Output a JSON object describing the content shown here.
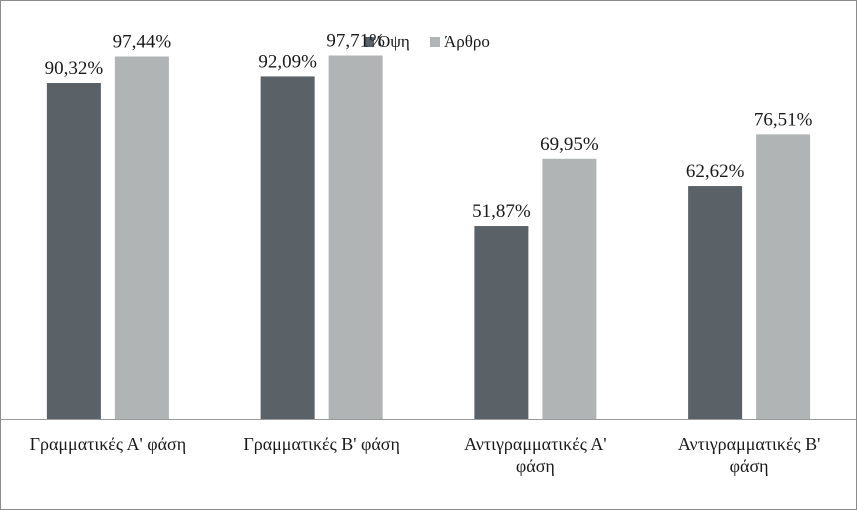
{
  "chart_data": {
    "type": "bar",
    "title": "",
    "xlabel": "",
    "ylabel": "",
    "ylim": [
      0,
      100
    ],
    "grid": false,
    "legend_position": "top-center",
    "categories": [
      "Γραμματικές Α' φάση",
      "Γραμματικές Β' φάση",
      "Αντιγραμματικές Α' φάση",
      "Αντιγραμματικές Β' φάση"
    ],
    "category_lines": [
      [
        "Γραμματικές Α' φάση"
      ],
      [
        "Γραμματικές Β' φάση"
      ],
      [
        "Αντιγραμματικές Α'",
        "φάση"
      ],
      [
        "Αντιγραμματικές Β'",
        "φάση"
      ]
    ],
    "series": [
      {
        "name": "Όψη",
        "color": "#5a6268",
        "values": [
          90.32,
          92.09,
          51.87,
          62.62
        ],
        "labels": [
          "90,32%",
          "92,09%",
          "51,87%",
          "62,62%"
        ]
      },
      {
        "name": "Άρθρο",
        "color": "#b0b4b4",
        "values": [
          97.44,
          97.71,
          69.95,
          76.51
        ],
        "labels": [
          "97,44%",
          "97,71%",
          "69,95%",
          "76,51%"
        ]
      }
    ]
  }
}
